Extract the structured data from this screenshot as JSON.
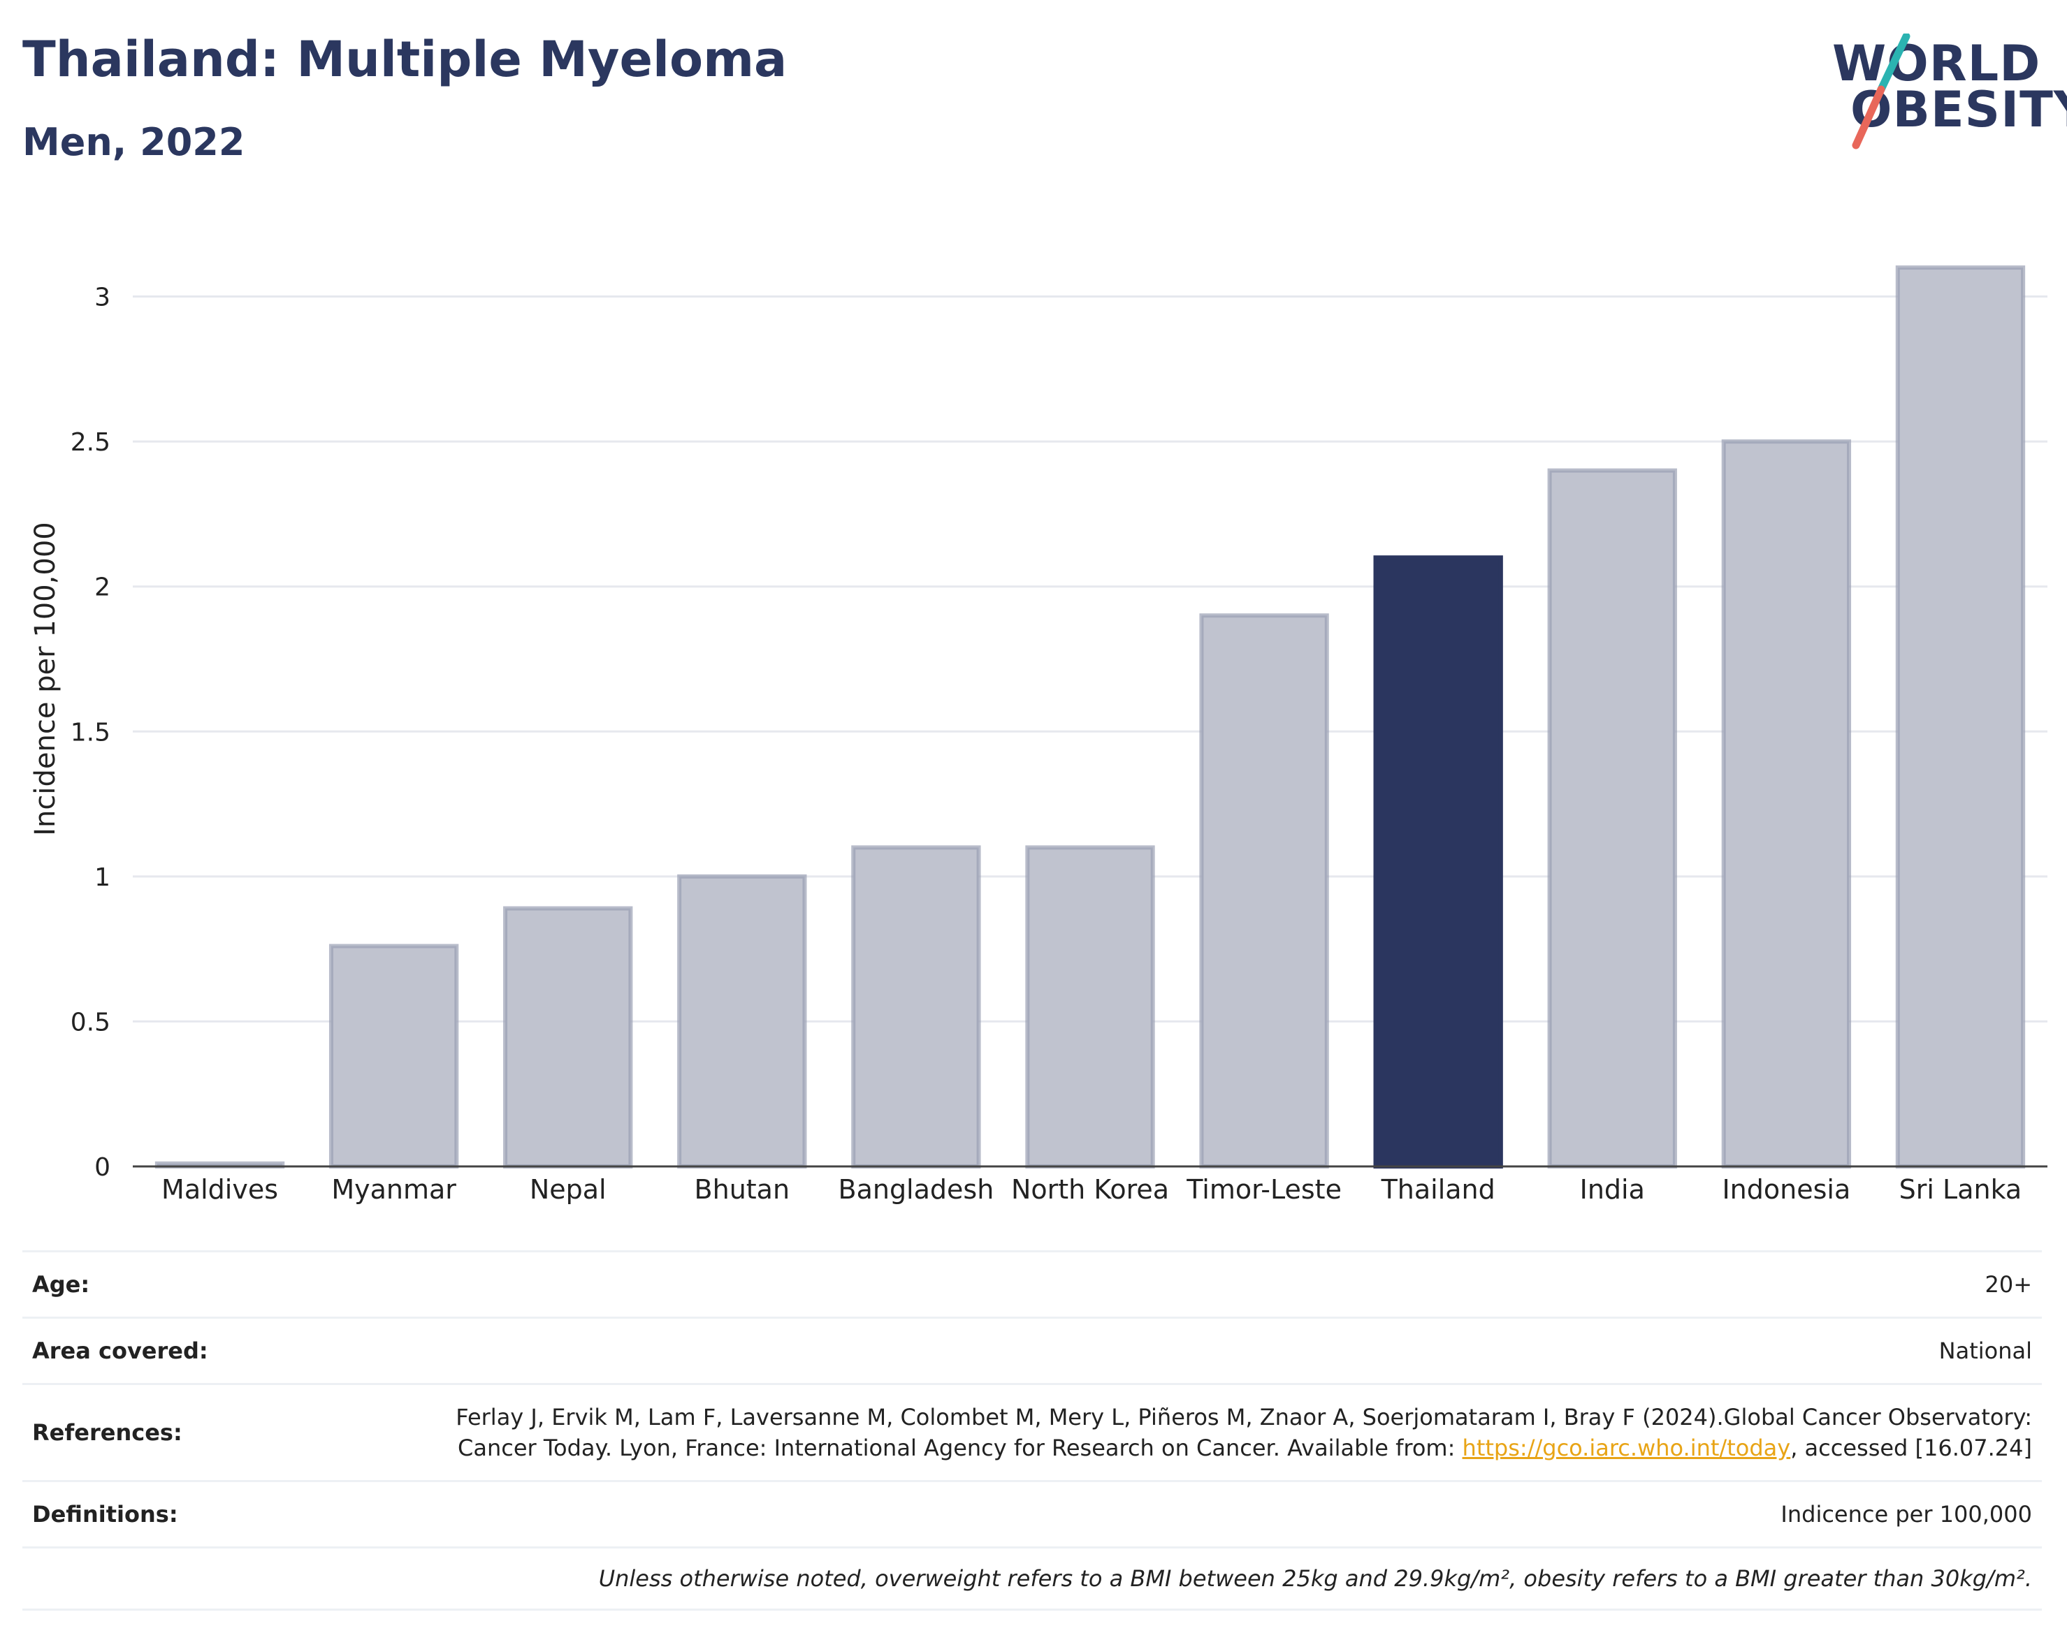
{
  "header": {
    "title": "Thailand: Multiple Myeloma",
    "subtitle": "Men, 2022"
  },
  "logo": {
    "line1": "WORLD",
    "line2": "OBESITY",
    "colors": {
      "text": "#2b375f",
      "slash_top": "#2bb3b1",
      "slash_bottom": "#e8675a"
    }
  },
  "chart_data": {
    "type": "bar",
    "categories": [
      "Maldives",
      "Myanmar",
      "Nepal",
      "Bhutan",
      "Bangladesh",
      "North Korea",
      "Timor-Leste",
      "Thailand",
      "India",
      "Indonesia",
      "Sri Lanka"
    ],
    "values": [
      0.01,
      0.76,
      0.89,
      1.0,
      1.1,
      1.1,
      1.9,
      2.1,
      2.4,
      2.5,
      3.1
    ],
    "highlight": "Thailand",
    "ylabel": "Incidence per 100,000",
    "ylim": [
      0,
      3.3
    ],
    "yticks": [
      0,
      0.5,
      1,
      1.5,
      2,
      2.5,
      3
    ],
    "ytick_labels": [
      "0",
      "0.5",
      "1",
      "1.5",
      "2",
      "2.5",
      "3"
    ],
    "grid": true,
    "colors": {
      "bar": "#c0c3cf",
      "bar_edge": "#9a9fb4",
      "highlight": "#2b365f",
      "grid": "#e6e8ee",
      "axis": "#444444"
    }
  },
  "meta": {
    "age_label": "Age:",
    "age_value": "20+",
    "area_label": "Area covered:",
    "area_value": "National",
    "references_label": "References:",
    "references_text": "Ferlay J, Ervik M, Lam F, Laversanne M, Colombet M, Mery L, Piñeros M, Znaor A, Soerjomataram I, Bray F (2024).Global Cancer Observatory: Cancer Today. Lyon, France: International Agency for Research on Cancer. Available from:",
    "references_link": "https://gco.iarc.who.int/today",
    "references_suffix": ", accessed [16.07.24]",
    "definitions_label": "Definitions:",
    "definitions_value": "Indicence per 100,000",
    "note": "Unless otherwise noted, overweight refers to a BMI between 25kg and 29.9kg/m², obesity refers to a BMI greater than 30kg/m²."
  }
}
